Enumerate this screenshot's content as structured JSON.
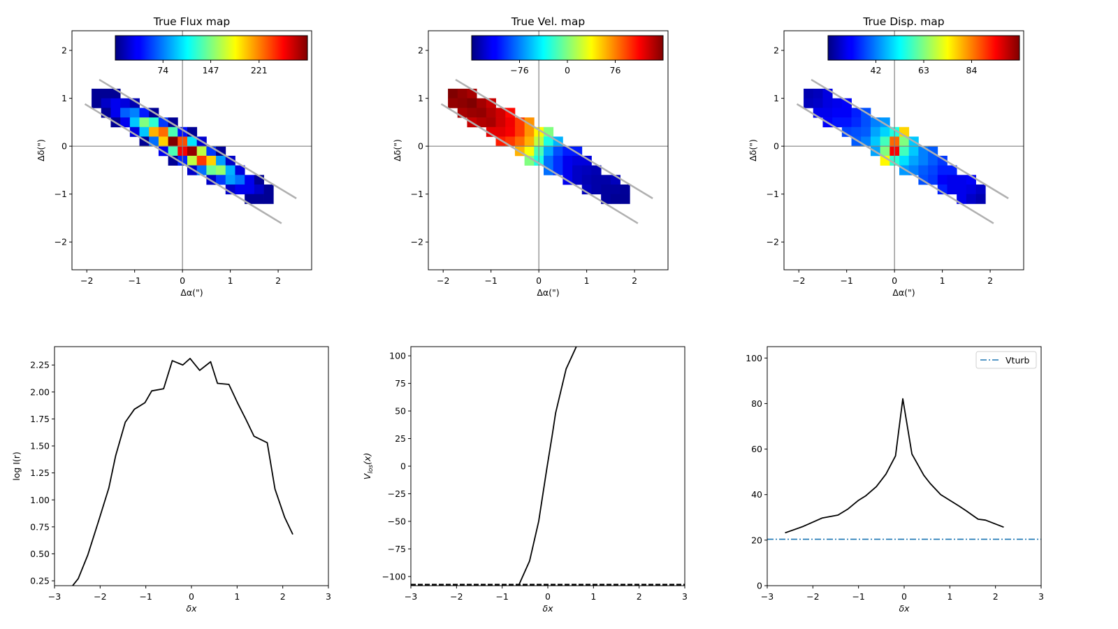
{
  "chart_data": [
    {
      "type": "heatmap",
      "title": "True Flux map",
      "xlabel": "Δα(\")",
      "ylabel": "Δδ(\")",
      "xlim": [
        -2.31,
        2.7
      ],
      "ylim": [
        -2.58,
        2.41
      ],
      "xticks": [
        -2,
        -1,
        0,
        1,
        2
      ],
      "xtick_labels": [
        "−2",
        "−1",
        "0",
        "1",
        "2"
      ],
      "yticks": [
        -2,
        -1,
        0,
        1,
        2
      ],
      "ytick_labels": [
        "−2",
        "−1",
        "0",
        "1",
        "2"
      ],
      "colormap": "jet",
      "vmin": 1,
      "vmax": 295,
      "colorbar_ticks": [
        74,
        147,
        221
      ],
      "colorbar_tick_labels": [
        "74",
        "147",
        "221"
      ],
      "pixel_size": 0.2,
      "rows": [
        {
          "j": 5,
          "i0": -9,
          "values": [
            7,
            7,
            7
          ]
        },
        {
          "j": 4,
          "i0": -9,
          "values": [
            7,
            22,
            33,
            28,
            15
          ]
        },
        {
          "j": 3,
          "i0": -8,
          "values": [
            7,
            33,
            65,
            75,
            45,
            7
          ]
        },
        {
          "j": 2,
          "i0": -7,
          "values": [
            7,
            33,
            95,
            148,
            124,
            54,
            7
          ]
        },
        {
          "j": 1,
          "i0": -5,
          "values": [
            28,
            95,
            207,
            227,
            133,
            42,
            7
          ]
        },
        {
          "j": 0,
          "i0": -4,
          "values": [
            7,
            70,
            198,
            295,
            236,
            104,
            24
          ]
        },
        {
          "j": -1,
          "i0": -2,
          "values": [
            33,
            133,
            260,
            289,
            166,
            54,
            7
          ]
        },
        {
          "j": -2,
          "i0": -1,
          "values": [
            7,
            48,
            166,
            242,
            198,
            83,
            22
          ]
        },
        {
          "j": -3,
          "i0": 1,
          "values": [
            22,
            70,
            142,
            154,
            89,
            28
          ]
        },
        {
          "j": -4,
          "i0": 3,
          "values": [
            22,
            54,
            83,
            70,
            33,
            7
          ]
        },
        {
          "j": -5,
          "i0": 5,
          "values": [
            22,
            33,
            33,
            22,
            7
          ]
        },
        {
          "j": -6,
          "i0": 7,
          "values": [
            7,
            7,
            7
          ]
        }
      ],
      "slit_lines": [
        [
          [
            -1.74,
            1.39
          ],
          [
            2.38,
            -1.09
          ]
        ],
        [
          [
            -2.04,
            0.88
          ],
          [
            2.07,
            -1.61
          ]
        ]
      ]
    },
    {
      "type": "heatmap",
      "title": "True Vel. map",
      "xlabel": "Δα(\")",
      "ylabel": "Δδ(\")",
      "xlim": [
        -2.31,
        2.7
      ],
      "ylim": [
        -2.58,
        2.41
      ],
      "xticks": [
        -2,
        -1,
        0,
        1,
        2
      ],
      "xtick_labels": [
        "−2",
        "−1",
        "0",
        "1",
        "2"
      ],
      "yticks": [
        -2,
        -1,
        0,
        1,
        2
      ],
      "ytick_labels": [
        "−2",
        "−1",
        "0",
        "1",
        "2"
      ],
      "colormap": "jet",
      "vmin": -152,
      "vmax": 152,
      "colorbar_ticks": [
        -76,
        0,
        76
      ],
      "colorbar_tick_labels": [
        "−76",
        "0",
        "76"
      ],
      "pixel_size": 0.2,
      "rows": [
        {
          "j": 5,
          "i0": -9,
          "values": [
            152,
            146,
            140
          ]
        },
        {
          "j": 4,
          "i0": -9,
          "values": [
            146,
            148,
            152,
            141,
            131
          ]
        },
        {
          "j": 3,
          "i0": -8,
          "values": [
            140,
            144,
            146,
            137,
            128,
            112
          ]
        },
        {
          "j": 2,
          "i0": -7,
          "values": [
            131,
            137,
            140,
            128,
            118,
            97,
            70
          ]
        },
        {
          "j": 1,
          "i0": -5,
          "values": [
            122,
            122,
            116,
            97,
            70,
            40,
            0
          ]
        },
        {
          "j": 0,
          "i0": -4,
          "values": [
            106,
            97,
            82,
            61,
            18,
            -30,
            -61
          ]
        },
        {
          "j": -1,
          "i0": -2,
          "values": [
            61,
            36,
            -15,
            -64,
            -91,
            -106,
            -106
          ]
        },
        {
          "j": -2,
          "i0": -1,
          "values": [
            0,
            -30,
            -81,
            -100,
            -119,
            -124,
            -124
          ]
        },
        {
          "j": -3,
          "i0": 1,
          "values": [
            -81,
            -100,
            -119,
            -131,
            -134,
            -137
          ]
        },
        {
          "j": -4,
          "i0": 3,
          "values": [
            -119,
            -131,
            -137,
            -140,
            -140,
            -134
          ]
        },
        {
          "j": -5,
          "i0": 5,
          "values": [
            -134,
            -140,
            -143,
            -143,
            -145
          ]
        },
        {
          "j": -6,
          "i0": 7,
          "values": [
            -143,
            -146,
            -146
          ]
        }
      ],
      "slit_lines": [
        [
          [
            -1.74,
            1.39
          ],
          [
            2.38,
            -1.09
          ]
        ],
        [
          [
            -2.04,
            0.88
          ],
          [
            2.07,
            -1.61
          ]
        ]
      ]
    },
    {
      "type": "heatmap",
      "title": "True Disp. map",
      "xlabel": "Δα(\")",
      "ylabel": "Δδ(\")",
      "xlim": [
        -2.31,
        2.7
      ],
      "ylim": [
        -2.58,
        2.41
      ],
      "xticks": [
        -2,
        -1,
        0,
        1,
        2
      ],
      "xtick_labels": [
        "−2",
        "−1",
        "0",
        "1",
        "2"
      ],
      "yticks": [
        -2,
        -1,
        0,
        1,
        2
      ],
      "ytick_labels": [
        "−2",
        "−1",
        "0",
        "1",
        "2"
      ],
      "colormap": "jet",
      "vmin": 21,
      "vmax": 105,
      "colorbar_ticks": [
        42,
        63,
        84
      ],
      "colorbar_tick_labels": [
        "42",
        "63",
        "84"
      ],
      "pixel_size": 0.2,
      "rows": [
        {
          "j": 5,
          "i0": -9,
          "values": [
            25,
            26,
            29
          ]
        },
        {
          "j": 4,
          "i0": -9,
          "values": [
            26,
            27,
            29,
            30,
            31
          ]
        },
        {
          "j": 3,
          "i0": -8,
          "values": [
            30,
            30,
            31,
            31,
            34,
            38
          ]
        },
        {
          "j": 2,
          "i0": -7,
          "values": [
            31,
            33,
            33,
            35,
            38,
            42,
            44
          ]
        },
        {
          "j": 1,
          "i0": -5,
          "values": [
            37,
            38,
            39,
            45,
            49,
            55,
            77
          ]
        },
        {
          "j": 0,
          "i0": -4,
          "values": [
            39,
            42,
            48,
            58,
            86,
            63,
            48
          ]
        },
        {
          "j": -1,
          "i0": -2,
          "values": [
            45,
            63,
            95,
            58,
            48,
            42,
            39
          ]
        },
        {
          "j": -2,
          "i0": -1,
          "values": [
            74,
            56,
            50,
            45,
            42,
            39,
            36
          ]
        },
        {
          "j": -3,
          "i0": 1,
          "values": [
            44,
            42,
            39,
            37,
            34,
            34
          ]
        },
        {
          "j": -4,
          "i0": 3,
          "values": [
            38,
            36,
            31,
            30,
            30,
            31
          ]
        },
        {
          "j": -5,
          "i0": 5,
          "values": [
            34,
            30,
            30,
            29,
            27
          ]
        },
        {
          "j": -6,
          "i0": 7,
          "values": [
            30,
            27,
            25
          ]
        }
      ],
      "slit_lines": [
        [
          [
            -1.74,
            1.39
          ],
          [
            2.38,
            -1.09
          ]
        ],
        [
          [
            -2.04,
            0.88
          ],
          [
            2.07,
            -1.61
          ]
        ]
      ]
    },
    {
      "type": "line",
      "title": "",
      "xlabel": "δx",
      "ylabel": "log I(r)",
      "xlim": [
        -3,
        3
      ],
      "ylim": [
        0.205,
        2.42
      ],
      "xticks": [
        -3,
        -2,
        -1,
        0,
        1,
        2,
        3
      ],
      "xtick_labels": [
        "−3",
        "−2",
        "−1",
        "0",
        "1",
        "2",
        "3"
      ],
      "yticks": [
        0.25,
        0.5,
        0.75,
        1.0,
        1.25,
        1.5,
        1.75,
        2.0,
        2.25
      ],
      "ytick_labels": [
        "0.25",
        "0.50",
        "0.75",
        "1.00",
        "1.25",
        "1.50",
        "1.75",
        "2.00",
        "2.25"
      ],
      "series": [
        {
          "name": "profile",
          "color": "#000000",
          "x": [
            -2.65,
            -2.48,
            -2.27,
            -2.03,
            -1.81,
            -1.66,
            -1.45,
            -1.25,
            -1.02,
            -0.87,
            -0.61,
            -0.42,
            -0.19,
            -0.03,
            0.18,
            0.42,
            0.57,
            0.82,
            1.02,
            1.2,
            1.37,
            1.66,
            1.83,
            2.04,
            2.22
          ],
          "y": [
            0.18,
            0.27,
            0.49,
            0.81,
            1.11,
            1.41,
            1.72,
            1.84,
            1.9,
            2.01,
            2.03,
            2.29,
            2.25,
            2.31,
            2.2,
            2.28,
            2.08,
            2.07,
            1.89,
            1.74,
            1.59,
            1.53,
            1.1,
            0.84,
            0.68
          ]
        }
      ]
    },
    {
      "type": "line",
      "title": "",
      "xlabel": "δx",
      "ylabel_parts": {
        "main": "V",
        "sub": "los",
        "suffix": "(x)"
      },
      "xlim": [
        -3,
        3
      ],
      "ylim": [
        -108.3,
        108.3
      ],
      "xticks": [
        -3,
        -2,
        -1,
        0,
        1,
        2,
        3
      ],
      "xtick_labels": [
        "−3",
        "−2",
        "−1",
        "0",
        "1",
        "2",
        "3"
      ],
      "yticks": [
        -100,
        -75,
        -50,
        -25,
        0,
        25,
        50,
        75,
        100
      ],
      "ytick_labels": [
        "−100",
        "−75",
        "−50",
        "−25",
        "0",
        "25",
        "50",
        "75",
        "100"
      ],
      "series": [
        {
          "name": "velocity",
          "color": "#000000",
          "x": [
            -0.63,
            -0.4,
            -0.2,
            -0.02,
            0.1,
            0.17,
            0.4,
            0.62,
            0.8
          ],
          "y": [
            -107.3,
            -86,
            -50,
            -1.7,
            29,
            48,
            88,
            107.9,
            135
          ]
        }
      ],
      "hlines": [
        {
          "y": -107.3,
          "style": "dashed",
          "color": "#000000"
        }
      ]
    },
    {
      "type": "line",
      "title": "",
      "xlabel": "δx",
      "ylabel": "",
      "xlim": [
        -3,
        3
      ],
      "ylim": [
        0,
        105
      ],
      "xticks": [
        -3,
        -2,
        -1,
        0,
        1,
        2,
        3
      ],
      "xtick_labels": [
        "−3",
        "−2",
        "−1",
        "0",
        "1",
        "2",
        "3"
      ],
      "yticks": [
        0,
        20,
        40,
        60,
        80,
        100
      ],
      "ytick_labels": [
        "0",
        "20",
        "40",
        "60",
        "80",
        "100"
      ],
      "series": [
        {
          "name": "dispersion",
          "color": "#000000",
          "x": [
            -2.61,
            -2.23,
            -1.8,
            -1.45,
            -1.23,
            -1.0,
            -0.84,
            -0.61,
            -0.4,
            -0.19,
            -0.03,
            0.17,
            0.43,
            0.57,
            0.8,
            1.2,
            1.35,
            1.62,
            1.78,
            2.18
          ],
          "y": [
            23.2,
            25.9,
            29.7,
            31,
            33.7,
            37.5,
            39.5,
            43.5,
            49,
            57,
            82.1,
            57.8,
            48.5,
            44.9,
            40,
            35,
            33,
            29.2,
            28.8,
            25.7
          ]
        }
      ],
      "hlines": [
        {
          "y": 20.4,
          "style": "dashdot",
          "color": "#1f77b4",
          "label": "Vturb"
        }
      ],
      "legend": {
        "entries": [
          "Vturb"
        ],
        "placement": "top-right"
      }
    }
  ]
}
